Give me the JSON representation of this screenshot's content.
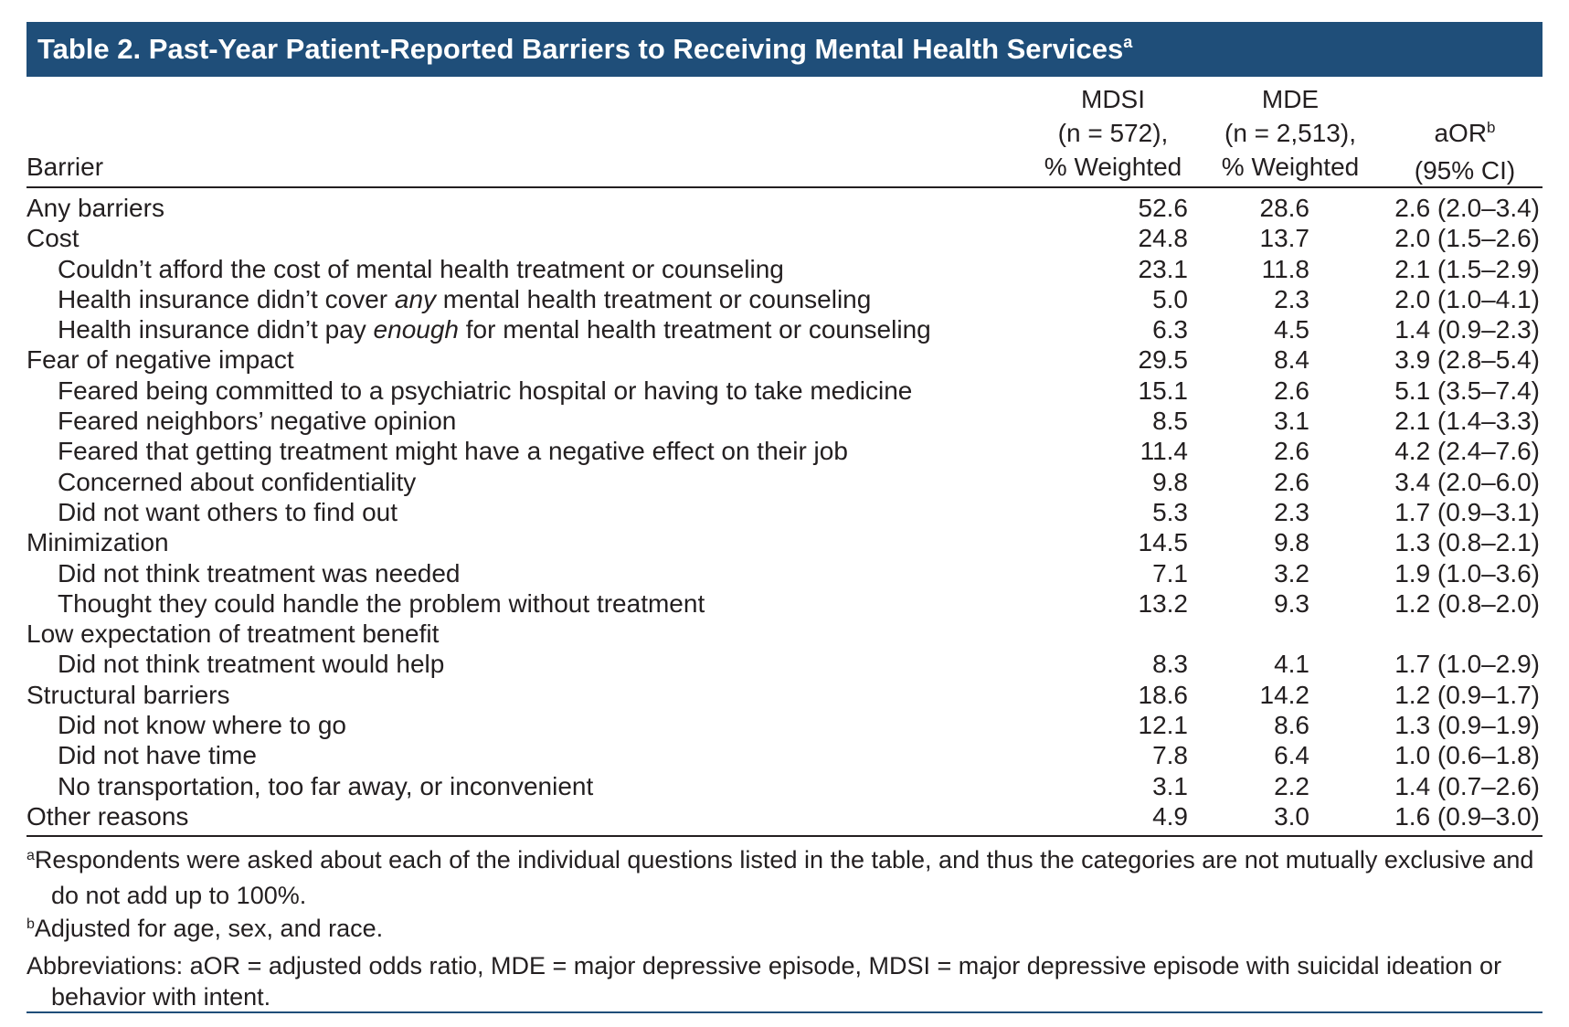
{
  "title": "Table 2. Past-Year Patient-Reported Barriers to Receiving Mental Health Services",
  "title_sup": "a",
  "headers": {
    "barrier": "Barrier",
    "mdsi": [
      "MDSI",
      "(n = 572),",
      "% Weighted"
    ],
    "mde": [
      "MDE",
      "(n = 2,513),",
      "% Weighted"
    ],
    "aor_main": "aOR",
    "aor_sup": "b",
    "aor_ci": "(95% CI)"
  },
  "rows": [
    {
      "pre": "Any barriers",
      "em": "",
      "post": "",
      "indent": false,
      "mdsi": "52.6",
      "mde": "28.6",
      "aor": "2.6 (2.0–3.4)"
    },
    {
      "pre": "Cost",
      "em": "",
      "post": "",
      "indent": false,
      "mdsi": "24.8",
      "mde": "13.7",
      "aor": "2.0 (1.5–2.6)"
    },
    {
      "pre": "Couldn’t afford the cost of mental health treatment or counseling",
      "em": "",
      "post": "",
      "indent": true,
      "mdsi": "23.1",
      "mde": "11.8",
      "aor": "2.1 (1.5–2.9)"
    },
    {
      "pre": "Health insurance didn’t cover ",
      "em": "any",
      "post": " mental health treatment or counseling",
      "indent": true,
      "mdsi": "5.0",
      "mde": "2.3",
      "aor": "2.0 (1.0–4.1)"
    },
    {
      "pre": "Health insurance didn’t pay ",
      "em": "enough",
      "post": " for mental health treatment or counseling",
      "indent": true,
      "mdsi": "6.3",
      "mde": "4.5",
      "aor": "1.4 (0.9–2.3)"
    },
    {
      "pre": "Fear of negative impact",
      "em": "",
      "post": "",
      "indent": false,
      "mdsi": "29.5",
      "mde": "8.4",
      "aor": "3.9 (2.8–5.4)"
    },
    {
      "pre": "Feared being committed to a psychiatric hospital or having to take medicine",
      "em": "",
      "post": "",
      "indent": true,
      "mdsi": "15.1",
      "mde": "2.6",
      "aor": "5.1 (3.5–7.4)"
    },
    {
      "pre": "Feared neighbors’ negative opinion",
      "em": "",
      "post": "",
      "indent": true,
      "mdsi": "8.5",
      "mde": "3.1",
      "aor": "2.1 (1.4–3.3)"
    },
    {
      "pre": "Feared that getting treatment might have a negative effect on their job",
      "em": "",
      "post": "",
      "indent": true,
      "mdsi": "11.4",
      "mde": "2.6",
      "aor": "4.2 (2.4–7.6)"
    },
    {
      "pre": "Concerned about confidentiality",
      "em": "",
      "post": "",
      "indent": true,
      "mdsi": "9.8",
      "mde": "2.6",
      "aor": "3.4 (2.0–6.0)"
    },
    {
      "pre": "Did not want others to find out",
      "em": "",
      "post": "",
      "indent": true,
      "mdsi": "5.3",
      "mde": "2.3",
      "aor": "1.7 (0.9–3.1)"
    },
    {
      "pre": "Minimization",
      "em": "",
      "post": "",
      "indent": false,
      "mdsi": "14.5",
      "mde": "9.8",
      "aor": "1.3 (0.8–2.1)"
    },
    {
      "pre": "Did not think treatment was needed",
      "em": "",
      "post": "",
      "indent": true,
      "mdsi": "7.1",
      "mde": "3.2",
      "aor": "1.9 (1.0–3.6)"
    },
    {
      "pre": "Thought they could handle the problem without treatment",
      "em": "",
      "post": "",
      "indent": true,
      "mdsi": "13.2",
      "mde": "9.3",
      "aor": "1.2 (0.8–2.0)"
    },
    {
      "pre": "Low expectation of treatment benefit",
      "em": "",
      "post": "",
      "indent": false,
      "mdsi": "",
      "mde": "",
      "aor": ""
    },
    {
      "pre": "Did not think treatment would help",
      "em": "",
      "post": "",
      "indent": true,
      "mdsi": "8.3",
      "mde": "4.1",
      "aor": "1.7 (1.0–2.9)"
    },
    {
      "pre": "Structural barriers",
      "em": "",
      "post": "",
      "indent": false,
      "mdsi": "18.6",
      "mde": "14.2",
      "aor": "1.2 (0.9–1.7)"
    },
    {
      "pre": "Did not know where to go",
      "em": "",
      "post": "",
      "indent": true,
      "mdsi": "12.1",
      "mde": "8.6",
      "aor": "1.3 (0.9–1.9)"
    },
    {
      "pre": "Did not have time",
      "em": "",
      "post": "",
      "indent": true,
      "mdsi": "7.8",
      "mde": "6.4",
      "aor": "1.0 (0.6–1.8)"
    },
    {
      "pre": "No transportation, too far away, or inconvenient",
      "em": "",
      "post": "",
      "indent": true,
      "mdsi": "3.1",
      "mde": "2.2",
      "aor": "1.4 (0.7–2.6)"
    },
    {
      "pre": "Other reasons",
      "em": "",
      "post": "",
      "indent": false,
      "mdsi": "4.9",
      "mde": "3.0",
      "aor": "1.6 (0.9–3.0)"
    }
  ],
  "footnotes": [
    {
      "sup": "a",
      "text": "Respondents were asked about each of the individual questions listed in the table, and thus the categories are not mutually exclusive and do not add up to 100%."
    },
    {
      "sup": "b",
      "text": "Adjusted for age, sex, and race."
    },
    {
      "sup": "",
      "text": "Abbreviations: aOR = adjusted odds ratio, MDE = major depressive episode, MDSI = major depressive episode with suicidal ideation or behavior with intent."
    }
  ],
  "colors": {
    "title_bar": "#1f4e79",
    "text": "#231f20"
  }
}
